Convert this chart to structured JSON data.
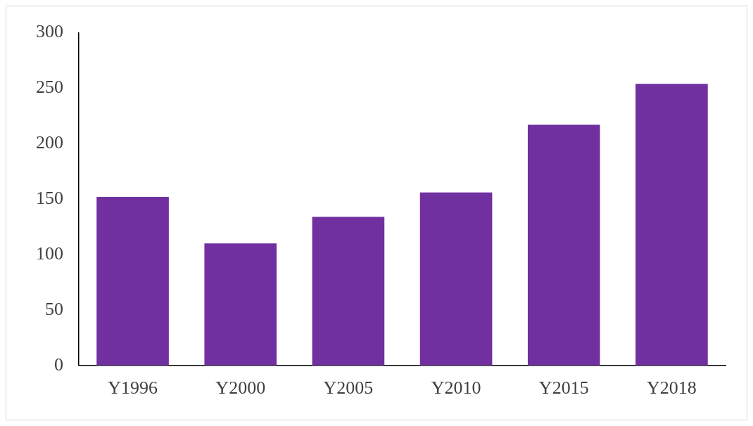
{
  "chart_data": {
    "type": "bar",
    "categories": [
      "Y1996",
      "Y2000",
      "Y2005",
      "Y2010",
      "Y2015",
      "Y2018"
    ],
    "values": [
      152,
      110,
      134,
      156,
      217,
      254
    ],
    "color": "#7030a0",
    "ylim": [
      0,
      300
    ],
    "yticks": [
      0,
      50,
      100,
      150,
      200,
      250,
      300
    ],
    "grid": false,
    "legend": false
  }
}
